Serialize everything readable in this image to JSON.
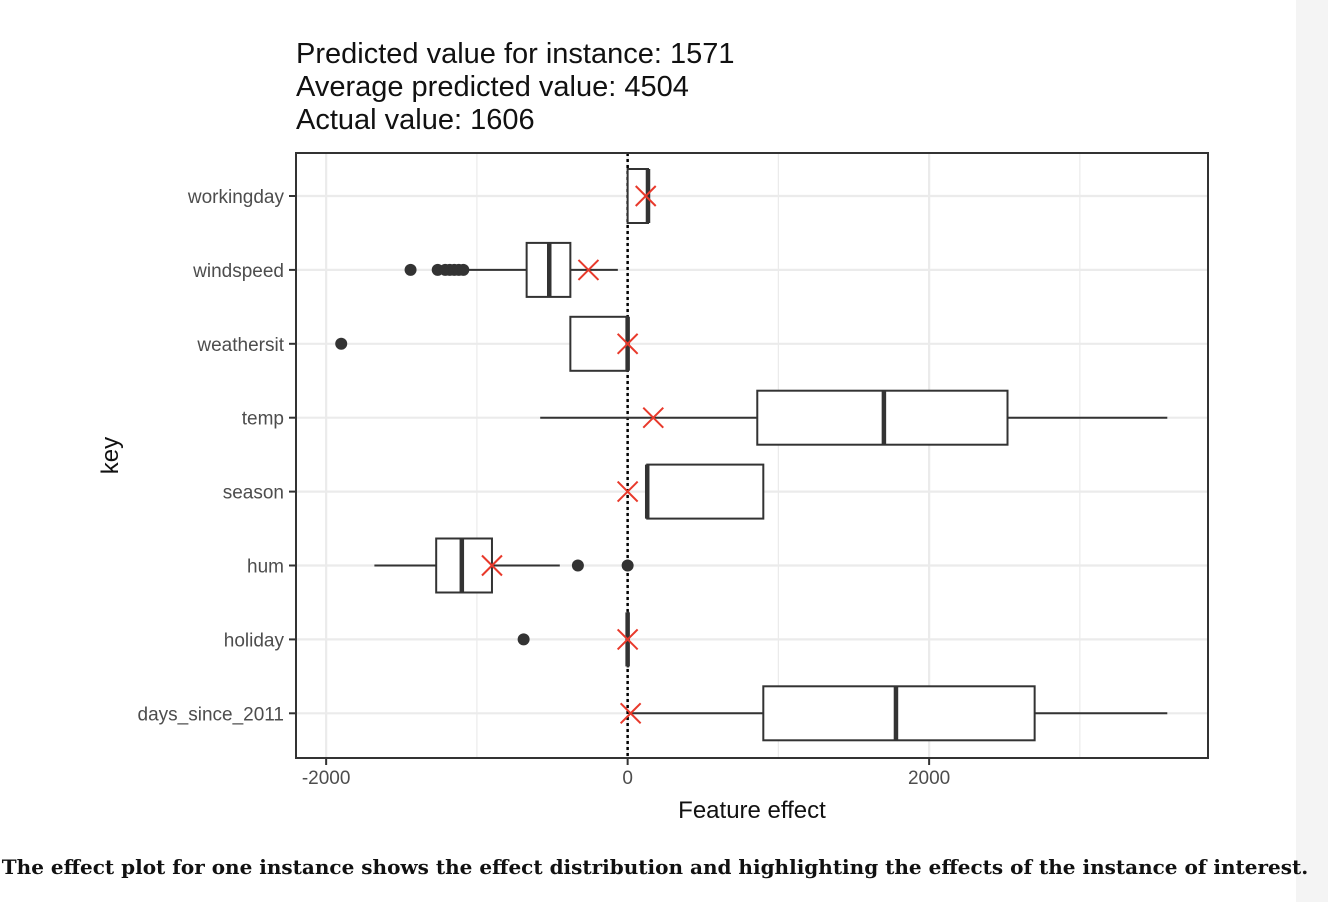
{
  "chart_data": {
    "type": "boxplot",
    "title_lines": [
      "Predicted value for instance: 1571",
      "Average predicted value: 4504",
      "Actual value: 1606"
    ],
    "xlabel": "Feature effect",
    "ylabel": "key",
    "xlim": [
      -2200,
      3850
    ],
    "x_ticks": [
      -2000,
      0,
      2000
    ],
    "x_tick_labels": [
      "-2000",
      "0",
      "2000"
    ],
    "reference_line_x": 0,
    "categories": [
      "workingday",
      "windspeed",
      "weathersit",
      "temp",
      "season",
      "hum",
      "holiday",
      "days_since_2011"
    ],
    "series": [
      {
        "key": "workingday",
        "whisker_low": 0,
        "q1": 0,
        "median": 135,
        "q3": 135,
        "whisker_high": 135,
        "outliers": [],
        "instance_effect": 120
      },
      {
        "key": "windspeed",
        "whisker_low": -1060,
        "q1": -670,
        "median": -520,
        "q3": -380,
        "whisker_high": -65,
        "outliers": [
          -1440,
          -1260,
          -1210,
          -1180,
          -1150,
          -1120,
          -1090
        ],
        "instance_effect": -260
      },
      {
        "key": "weathersit",
        "whisker_low": -380,
        "q1": -380,
        "median": 0,
        "q3": 0,
        "whisker_high": 0,
        "outliers": [
          -1900
        ],
        "instance_effect": 0
      },
      {
        "key": "temp",
        "whisker_low": -580,
        "q1": 860,
        "median": 1700,
        "q3": 2520,
        "whisker_high": 3580,
        "outliers": [],
        "instance_effect": 170
      },
      {
        "key": "season",
        "whisker_low": 130,
        "q1": 130,
        "median": 130,
        "q3": 900,
        "whisker_high": 900,
        "outliers": [],
        "instance_effect": 0
      },
      {
        "key": "hum",
        "whisker_low": -1680,
        "q1": -1270,
        "median": -1100,
        "q3": -900,
        "whisker_high": -450,
        "outliers": [
          -330,
          0
        ],
        "instance_effect": -900
      },
      {
        "key": "holiday",
        "whisker_low": 0,
        "q1": 0,
        "median": 0,
        "q3": 0,
        "whisker_high": 0,
        "outliers": [
          -690
        ],
        "instance_effect": 0
      },
      {
        "key": "days_since_2011",
        "whisker_low": 20,
        "q1": 900,
        "median": 1780,
        "q3": 2700,
        "whisker_high": 3580,
        "outliers": [],
        "instance_effect": 20
      }
    ],
    "colors": {
      "box": "#333333",
      "instance_marker": "#e8392b",
      "grid": "#ebebeb",
      "reference_line": "#000000"
    }
  },
  "caption": "The effect plot for one instance shows the effect distribution and highlighting the effects of the instance of interest."
}
